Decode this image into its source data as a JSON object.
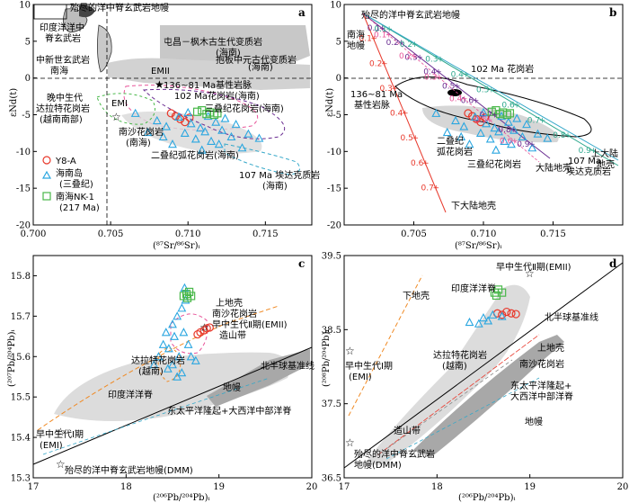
{
  "chart_data": [
    {
      "type": "scatter",
      "panel": "a",
      "xlabel": "(⁸⁷Sr/⁸⁶Sr)ᵢ",
      "ylabel": "εNd(t)",
      "xlim": [
        0.7,
        0.718
      ],
      "ylim": [
        -20,
        10
      ],
      "xticks": [
        "0.700",
        "0.705",
        "0.710",
        "0.715"
      ],
      "yticks": [
        "10",
        "5",
        "0",
        "-5",
        "-10",
        "-15",
        "-20"
      ],
      "legend": [
        "Y8-A",
        "海南岛\n(三叠纪)",
        "南海NK-1\n(217 Ma)"
      ],
      "labels": {
        "dying": "殆尽的洋中脊玄武岩地幔",
        "indian": "印度洋洋中\n脊玄武岩",
        "scs": "中新世玄武岩\n南海",
        "dianchang": "屯昌－枫木古生代变质岩\n(海南)",
        "baoban": "抱板中元古代变质岩\n(海南)",
        "emii": "EMII",
        "emi": "EMI",
        "basic": "136~81 Ma基性岩脉",
        "g102": "102 Ma花岗岩(海南)",
        "late_meso": "晚中生代\n达拉特花岗岩\n(越南南部)",
        "triassic_g": "三叠纪花岗岩(海南)",
        "nansha": "南沙花岗岩\n(南海)",
        "arc": "二叠纪弧花岗岩(海南)",
        "adakite": "107 Ma 埃达克质岩\n(海南)"
      },
      "series": [
        {
          "name": "Y8-A",
          "points": [
            [
              0.7089,
              -4.8
            ],
            [
              0.7092,
              -5.2
            ],
            [
              0.7095,
              -5.6
            ],
            [
              0.7098,
              -6.0
            ],
            [
              0.7101,
              -5.4
            ]
          ]
        },
        {
          "name": "海南岛(三叠纪)",
          "points": [
            [
              0.7066,
              -4.8
            ],
            [
              0.708,
              -5.8
            ],
            [
              0.7086,
              -6.6
            ],
            [
              0.7094,
              -5.3
            ],
            [
              0.7098,
              -7.5
            ],
            [
              0.7102,
              -6.2
            ],
            [
              0.7105,
              -8.3
            ],
            [
              0.7108,
              -6.8
            ],
            [
              0.7111,
              -7.3
            ],
            [
              0.7113,
              -5.2
            ],
            [
              0.7115,
              -8.6
            ],
            [
              0.7118,
              -6.0
            ],
            [
              0.712,
              -9.0
            ],
            [
              0.7122,
              -7.1
            ],
            [
              0.7124,
              -5.5
            ],
            [
              0.7128,
              -8.0
            ],
            [
              0.7131,
              -6.3
            ],
            [
              0.7135,
              -9.5
            ],
            [
              0.7139,
              -7.6
            ],
            [
              0.7146,
              -8.2
            ],
            [
              0.709,
              -9.0
            ],
            [
              0.7084,
              -8.0
            ],
            [
              0.7074,
              -7.4
            ],
            [
              0.71,
              -4.7
            ],
            [
              0.7109,
              -9.8
            ]
          ]
        },
        {
          "name": "南海NK-1(217 Ma)",
          "points": [
            [
              0.7106,
              -4.6
            ],
            [
              0.7109,
              -4.4
            ],
            [
              0.7112,
              -4.9
            ],
            [
              0.7114,
              -4.7
            ],
            [
              0.7117,
              -5.0
            ],
            [
              0.7119,
              -4.8
            ]
          ]
        }
      ]
    },
    {
      "type": "scatter",
      "panel": "b",
      "xlabel": "(⁸⁷Sr/⁸⁶Sr)ᵢ",
      "ylabel": "εNd(t)",
      "xlim": [
        0.7,
        0.72
      ],
      "ylim": [
        -20,
        10
      ],
      "xticks": [
        "0.705",
        "0.710",
        "0.715"
      ],
      "yticks": [
        "10",
        "5",
        "0",
        "-5",
        "-10",
        "-15",
        "-20"
      ],
      "labels": {
        "dying": "殆尽的洋中脊玄武岩地幔",
        "scs": "南海\n地幔",
        "g102": "102 Ma 花岗岩",
        "basic": "136~81 Ma\n基性岩脉",
        "arc": "二叠纪\n弧花岗岩",
        "tri": "三叠纪花岗岩",
        "lower": "下大陆地壳",
        "crust": "大陆地壳",
        "adakite": "107 Ma\n埃达克质岩",
        "upper": "上大陆\n地壳"
      },
      "mixing_fractions": [
        "0.1",
        "0.2",
        "0.3",
        "0.4",
        "0.5",
        "0.6",
        "0.7",
        "0.8",
        "0.9"
      ]
    },
    {
      "type": "scatter",
      "panel": "c",
      "xlabel": "(²⁰⁶Pb/²⁰⁴Pb)ᵢ",
      "ylabel": "(²⁰⁷Pb/²⁰⁴Pb)ᵢ",
      "xlim": [
        17,
        20
      ],
      "ylim": [
        15.3,
        15.85
      ],
      "xticks": [
        "17",
        "18",
        "19",
        "20"
      ],
      "yticks": [
        "15.8",
        "15.7",
        "15.6",
        "15.5",
        "15.4",
        "15.3"
      ],
      "labels": {
        "upper": "上地壳",
        "nansha": "南沙花岗岩",
        "emii": "早中生代Ⅱ期(EMII)",
        "orogen": "造山带",
        "dalat": "达拉特花岗岩\n(越南)",
        "nhrl": "北半球基准线",
        "indian": "印度洋洋脊",
        "mantle": "地幔",
        "epr": "东太平洋隆起+大西洋中部洋脊",
        "emi": "早中生代Ⅰ期\n(EMI)",
        "dmm": "殆尽的洋中脊玄武岩地幔(DMM)"
      },
      "series": [
        {
          "name": "Y8-A",
          "points": [
            [
              18.77,
              15.655
            ],
            [
              18.8,
              15.66
            ],
            [
              18.84,
              15.665
            ],
            [
              18.87,
              15.67
            ],
            [
              18.9,
              15.672
            ]
          ]
        },
        {
          "name": "海南岛(三叠纪)",
          "points": [
            [
              18.35,
              15.6
            ],
            [
              18.4,
              15.63
            ],
            [
              18.43,
              15.66
            ],
            [
              18.46,
              15.62
            ],
            [
              18.5,
              15.68
            ],
            [
              18.52,
              15.65
            ],
            [
              18.55,
              15.7
            ],
            [
              18.57,
              15.6
            ],
            [
              18.6,
              15.72
            ],
            [
              18.62,
              15.66
            ],
            [
              18.64,
              15.74
            ],
            [
              18.5,
              15.58
            ],
            [
              18.45,
              15.57
            ],
            [
              18.6,
              15.56
            ],
            [
              18.67,
              15.63
            ],
            [
              18.7,
              15.6
            ],
            [
              18.75,
              15.59
            ],
            [
              18.55,
              15.55
            ],
            [
              18.63,
              15.77
            ],
            [
              18.3,
              15.58
            ]
          ]
        },
        {
          "name": "南海NK-1(217 Ma)",
          "points": [
            [
              18.62,
              15.75
            ],
            [
              18.65,
              15.755
            ],
            [
              18.68,
              15.76
            ],
            [
              18.66,
              15.745
            ],
            [
              18.7,
              15.75
            ]
          ]
        }
      ]
    },
    {
      "type": "scatter",
      "panel": "d",
      "xlabel": "(²⁰⁶Pb/²⁰⁴Pb)ᵢ",
      "ylabel": "(²⁰⁸Pb/²⁰⁴Pb)ᵢ",
      "xlim": [
        17,
        20
      ],
      "ylim": [
        36.5,
        39.5
      ],
      "xticks": [
        "17",
        "18",
        "19",
        "20"
      ],
      "yticks": [
        "39.5",
        "38.5",
        "37.5",
        "36.5"
      ],
      "labels": {
        "emii": "早中生代Ⅱ期(EMII)",
        "lower": "下地壳",
        "indian": "印度洋洋脊",
        "nhrl": "北半球基准线",
        "upper": "上地壳",
        "dalat": "达拉特花岗岩\n(越南)",
        "nansha": "南沙花岗岩",
        "emi": "早中生代Ⅰ期\n(EMI)",
        "epr": "东太平洋隆起+\n大西洋中部洋脊",
        "orogen": "造山带",
        "mantle": "地幔",
        "dmm": "殆尽的洋中脊玄武岩\n地幔(DMM)"
      },
      "series": [
        {
          "name": "Y8-A",
          "points": [
            [
              18.65,
              38.72
            ],
            [
              18.7,
              38.7
            ],
            [
              18.75,
              38.74
            ],
            [
              18.8,
              38.72
            ],
            [
              18.85,
              38.71
            ]
          ]
        },
        {
          "name": "海南岛(三叠纪)",
          "points": [
            [
              18.35,
              38.6
            ],
            [
              18.5,
              38.66
            ],
            [
              18.6,
              38.7
            ],
            [
              18.55,
              38.62
            ],
            [
              18.45,
              38.58
            ],
            [
              18.7,
              38.68
            ]
          ]
        },
        {
          "name": "南海NK-1(217 Ma)",
          "points": [
            [
              18.62,
              39.0
            ],
            [
              18.66,
              39.04
            ],
            [
              18.7,
              39.0
            ],
            [
              18.64,
              38.96
            ]
          ]
        }
      ]
    }
  ],
  "colors": {
    "red": "#e8382b",
    "blue": "#2aa6e0",
    "green": "#49b84a",
    "gray": "#c8c8c8",
    "darkgray": "#9a9a9a",
    "purple": "#6a2d91",
    "teal": "#2ea88e",
    "cyan": "#35a8c9",
    "orange": "#f08a24",
    "pink": "#e8559a"
  }
}
